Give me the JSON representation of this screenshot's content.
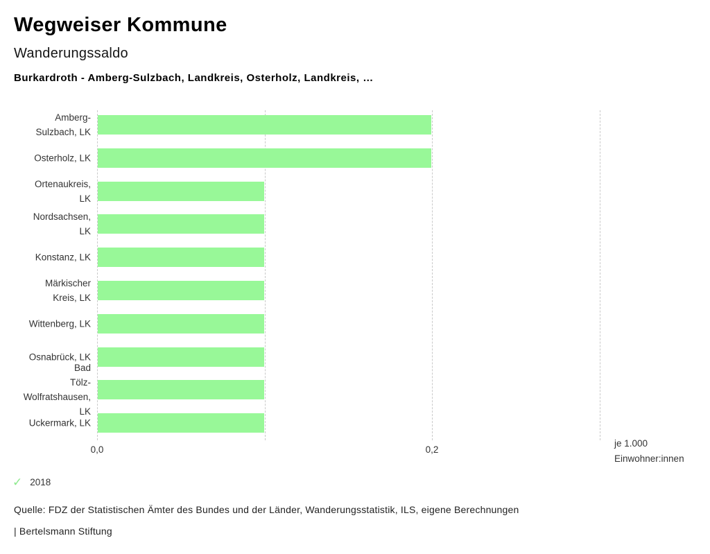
{
  "header": {
    "app_title": "Wegweiser Kommune",
    "chart_title": "Wanderungssaldo",
    "comparison": "Burkardroth - Amberg-Sulzbach, Landkreis, Osterholz, Landkreis, …"
  },
  "chart_data": {
    "type": "bar",
    "orientation": "horizontal",
    "title": "Wanderungssaldo",
    "xlabel": "je 1.000 Einwohner:innen",
    "xlabel_display": "je 1.000\nEinwohner:innen",
    "ylabel": "",
    "xlim": [
      0,
      0.35
    ],
    "grid": "vertical-dashed",
    "legend_position": "bottom-left",
    "series_name": "2018",
    "bar_color": "#98f898",
    "categories": [
      "Amberg-Sulzbach, LK",
      "Osterholz, LK",
      "Ortenaukreis, LK",
      "Nordsachsen, LK",
      "Konstanz, LK",
      "Märkischer Kreis, LK",
      "Wittenberg, LK",
      "Osnabrück, LK",
      "Bad Tölz-Wolfratshausen, LK",
      "Uckermark, LK"
    ],
    "rows": [
      {
        "label": "Amberg-\nSulzbach, LK",
        "value": 0.2
      },
      {
        "label": "Osterholz, LK",
        "value": 0.2
      },
      {
        "label": "Ortenaukreis,\nLK",
        "value": 0.1
      },
      {
        "label": "Nordsachsen,\nLK",
        "value": 0.1
      },
      {
        "label": "Konstanz, LK",
        "value": 0.1
      },
      {
        "label": "Märkischer\nKreis, LK",
        "value": 0.1
      },
      {
        "label": "Wittenberg, LK",
        "value": 0.1
      },
      {
        "label": "Osnabrück, LK",
        "value": 0.1
      },
      {
        "label": "Bad\nTölz-\nWolfratshausen,\nLK",
        "value": 0.1
      },
      {
        "label": "Uckermark, LK",
        "value": 0.1
      }
    ],
    "ticks": [
      {
        "value": 0.0,
        "label": "0,0"
      },
      {
        "value": 0.1,
        "label": ""
      },
      {
        "value": 0.2,
        "label": "0,2"
      },
      {
        "value": 0.3,
        "label": ""
      }
    ]
  },
  "legend": {
    "year": "2018",
    "check_icon_color": "#8ce98c"
  },
  "footer": {
    "source": "Quelle: FDZ der Statistischen Ämter des Bundes und der Länder, Wanderungsstatistik, ILS, eigene Berechnungen",
    "attribution": "| Bertelsmann Stiftung"
  },
  "colors": {
    "bar": "#98f898",
    "gridline": "#c9c9c9",
    "text": "#333333"
  }
}
